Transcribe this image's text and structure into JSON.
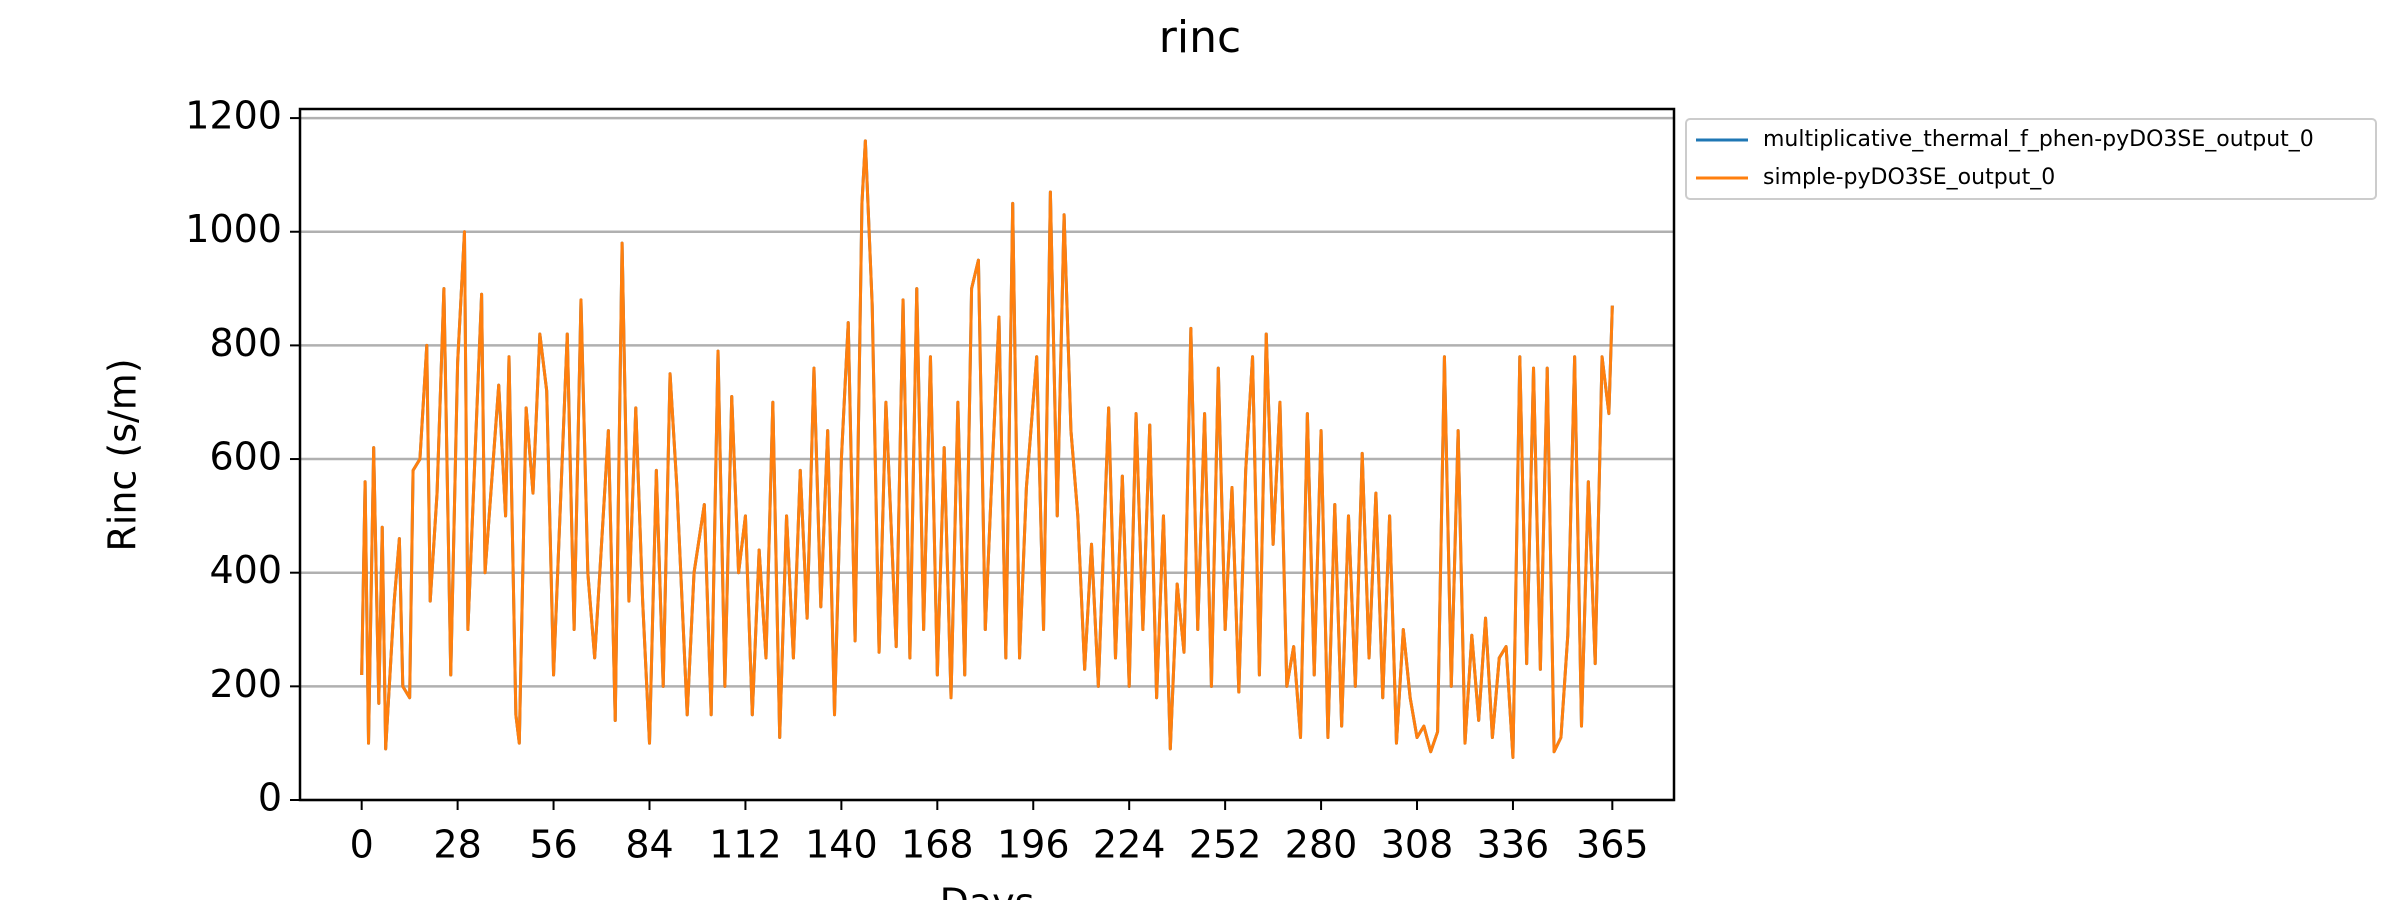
{
  "chart_data": {
    "type": "line",
    "title": "rinc",
    "xlabel": "Days",
    "ylabel": "Rinc (s/m)",
    "x": [
      0,
      1,
      2,
      3.5,
      5,
      6,
      7,
      9.5,
      11,
      12,
      14,
      15,
      17,
      19,
      20,
      22,
      24,
      26,
      28,
      30,
      31,
      35,
      36,
      40,
      42,
      43,
      45,
      46,
      48,
      50,
      52,
      54,
      56,
      60,
      62,
      64,
      66,
      68,
      72,
      74,
      76,
      78,
      80,
      82,
      84,
      86,
      88,
      90,
      92,
      95,
      97,
      100,
      102,
      104,
      106,
      108,
      110,
      112,
      114,
      116,
      118,
      120,
      122,
      124,
      126,
      128,
      130,
      132,
      134,
      136,
      138,
      140,
      142,
      144,
      146,
      147,
      149,
      151,
      153,
      156,
      158,
      160,
      162,
      164,
      166,
      168,
      170,
      172,
      174,
      176,
      178,
      180,
      182,
      184,
      186,
      188,
      190,
      192,
      194,
      197,
      199,
      201,
      203,
      205,
      207,
      209,
      211,
      213,
      215,
      218,
      220,
      222,
      224,
      226,
      228,
      230,
      232,
      234,
      236,
      238,
      240,
      242,
      244,
      246,
      248,
      250,
      252,
      254,
      256,
      258,
      260,
      262,
      264,
      266,
      268,
      270,
      272,
      274,
      276,
      278,
      280,
      282,
      284,
      286,
      288,
      290,
      292,
      294,
      296,
      298,
      300,
      302,
      304,
      306,
      308,
      310,
      312,
      314,
      316,
      318,
      320,
      322,
      324,
      326,
      328,
      330,
      332,
      334,
      336,
      338,
      340,
      342,
      344,
      346,
      348,
      350,
      352,
      354,
      356,
      358,
      360,
      362,
      364,
      365
    ],
    "series": [
      {
        "name": "multiplicative_thermal_f_phen-pyDO3SE_output_0",
        "color": "#1f77b4",
        "values": [
          220,
          560,
          100,
          620,
          170,
          480,
          90,
          350,
          460,
          200,
          180,
          580,
          600,
          800,
          350,
          540,
          900,
          220,
          770,
          1000,
          300,
          890,
          400,
          730,
          500,
          780,
          150,
          100,
          690,
          540,
          820,
          720,
          220,
          820,
          300,
          880,
          400,
          250,
          650,
          140,
          980,
          350,
          690,
          350,
          100,
          580,
          200,
          750,
          550,
          150,
          400,
          520,
          150,
          790,
          200,
          710,
          400,
          500,
          150,
          440,
          250,
          700,
          110,
          500,
          250,
          580,
          320,
          760,
          340,
          650,
          150,
          600,
          840,
          280,
          1050,
          1160,
          870,
          260,
          700,
          270,
          880,
          250,
          900,
          300,
          780,
          220,
          620,
          180,
          700,
          220,
          900,
          950,
          300,
          580,
          850,
          250,
          1050,
          250,
          550,
          780,
          300,
          1070,
          500,
          1030,
          650,
          500,
          230,
          450,
          200,
          690,
          250,
          570,
          200,
          680,
          300,
          660,
          180,
          500,
          90,
          380,
          260,
          830,
          300,
          680,
          200,
          760,
          300,
          550,
          190,
          580,
          780,
          220,
          820,
          450,
          700,
          200,
          270,
          110,
          680,
          220,
          650,
          110,
          520,
          130,
          500,
          200,
          610,
          250,
          540,
          180,
          500,
          100,
          300,
          180,
          110,
          130,
          85,
          120,
          780,
          200,
          650,
          100,
          290,
          140,
          320,
          110,
          250,
          270,
          75,
          780,
          240,
          760,
          230,
          760,
          85,
          110,
          290,
          780,
          130,
          560,
          240,
          780,
          680,
          870
        ]
      },
      {
        "name": "simple-pyDO3SE_output_0",
        "color": "#ff7f0e",
        "values": [
          220,
          560,
          100,
          620,
          170,
          480,
          90,
          350,
          460,
          200,
          180,
          580,
          600,
          800,
          350,
          540,
          900,
          220,
          770,
          1000,
          300,
          890,
          400,
          730,
          500,
          780,
          150,
          100,
          690,
          540,
          820,
          720,
          220,
          820,
          300,
          880,
          400,
          250,
          650,
          140,
          980,
          350,
          690,
          350,
          100,
          580,
          200,
          750,
          550,
          150,
          400,
          520,
          150,
          790,
          200,
          710,
          400,
          500,
          150,
          440,
          250,
          700,
          110,
          500,
          250,
          580,
          320,
          760,
          340,
          650,
          150,
          600,
          840,
          280,
          1050,
          1160,
          870,
          260,
          700,
          270,
          880,
          250,
          900,
          300,
          780,
          220,
          620,
          180,
          700,
          220,
          900,
          950,
          300,
          580,
          850,
          250,
          1050,
          250,
          550,
          780,
          300,
          1070,
          500,
          1030,
          650,
          500,
          230,
          450,
          200,
          690,
          250,
          570,
          200,
          680,
          300,
          660,
          180,
          500,
          90,
          380,
          260,
          830,
          300,
          680,
          200,
          760,
          300,
          550,
          190,
          580,
          780,
          220,
          820,
          450,
          700,
          200,
          270,
          110,
          680,
          220,
          650,
          110,
          520,
          130,
          500,
          200,
          610,
          250,
          540,
          180,
          500,
          100,
          300,
          180,
          110,
          130,
          85,
          120,
          780,
          200,
          650,
          100,
          290,
          140,
          320,
          110,
          250,
          270,
          75,
          780,
          240,
          760,
          230,
          760,
          85,
          110,
          290,
          780,
          130,
          560,
          240,
          780,
          680,
          870
        ]
      }
    ],
    "xlim": [
      -18,
      383
    ],
    "xticks": [
      0,
      28,
      56,
      84,
      112,
      140,
      168,
      196,
      224,
      252,
      280,
      308,
      336,
      365
    ],
    "ylim": [
      0,
      1216
    ],
    "yticks": [
      0,
      200,
      400,
      600,
      800,
      1000,
      1200
    ],
    "grid": true,
    "legend": "outside upper right"
  }
}
